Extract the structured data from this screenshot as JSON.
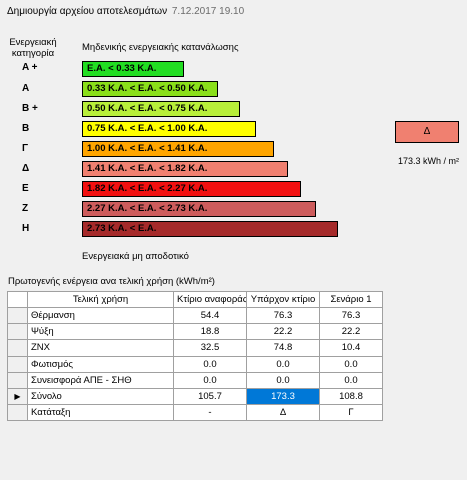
{
  "header": {
    "title": "Δημιουργία αρχείου αποτελεσμάτων",
    "date": "7.12.2017 19.10"
  },
  "energy_scale": {
    "category_header_line1": "Ενεργειακή",
    "category_header_line2": "κατηγορία",
    "top_label": "Μηδενικής ενεργειακής κατανάλωσης",
    "bottom_label": "Ενεργειακά μη αποδοτικό",
    "classes": [
      {
        "label": "A +",
        "range": "E.A. < 0.33 K.A.",
        "color": "#22dd22"
      },
      {
        "label": "A",
        "range": "0.33 K.A. < E.A. < 0.50 K.A.",
        "color": "#8adf1a"
      },
      {
        "label": "B +",
        "range": "0.50 K.A. < E.A. < 0.75 K.A.",
        "color": "#b8ef3a"
      },
      {
        "label": "B",
        "range": "0.75 K.A. < E.A. < 1.00 K.A.",
        "color": "#ffff00"
      },
      {
        "label": "Γ",
        "range": "1.00 K.A. < E.A. < 1.41 K.A.",
        "color": "#ffa500"
      },
      {
        "label": "Δ",
        "range": "1.41 K.A. < E.A. < 1.82 K.A.",
        "color": "#f08070"
      },
      {
        "label": "E",
        "range": "1.82 K.A. < E.A. < 2.27 K.A.",
        "color": "#f21010"
      },
      {
        "label": "Z",
        "range": "2.27 K.A. < E.A. < 2.73 K.A.",
        "color": "#cd5c5c"
      },
      {
        "label": "H",
        "range": "2.73 K.A. < E.A.",
        "color": "#a52a2a"
      }
    ]
  },
  "result": {
    "category": "Δ",
    "color": "#f08070",
    "value": "173.3 kWh / m²"
  },
  "table": {
    "caption": "Πρωτογενής ενέργεια ανα τελική χρήση (kWh/m²)",
    "columns": [
      "Τελική χρήση",
      "Κτίριο αναφοράς",
      "Υπάρχον κτίριο",
      "Σενάριο 1"
    ],
    "rows": [
      {
        "name": "Θέρμανση",
        "ref": "54.4",
        "existing": "76.3",
        "scenario": "76.3"
      },
      {
        "name": "Ψύξη",
        "ref": "18.8",
        "existing": "22.2",
        "scenario": "22.2"
      },
      {
        "name": "ZNX",
        "ref": "32.5",
        "existing": "74.8",
        "scenario": "10.4"
      },
      {
        "name": "Φωτισμός",
        "ref": "0.0",
        "existing": "0.0",
        "scenario": "0.0"
      },
      {
        "name": "Συνεισφορά ΑΠΕ - ΣΗΘ",
        "ref": "0.0",
        "existing": "0.0",
        "scenario": "0.0"
      },
      {
        "name": "Σύνολο",
        "ref": "105.7",
        "existing": "173.3",
        "scenario": "108.8"
      },
      {
        "name": "Κατάταξη",
        "ref": "-",
        "existing": "Δ",
        "scenario": "Γ"
      }
    ],
    "current_row_marker": "▶"
  }
}
